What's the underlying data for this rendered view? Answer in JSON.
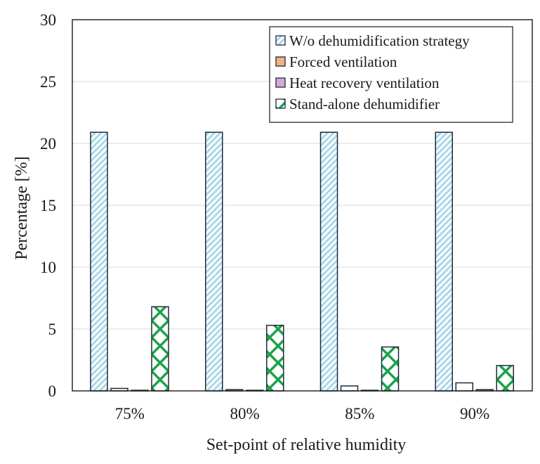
{
  "chart_data": {
    "type": "bar",
    "xlabel": "Set-point of relative humidity",
    "ylabel": "Percentage [%]",
    "ylim": [
      0,
      30
    ],
    "yticks": [
      0,
      5,
      10,
      15,
      20,
      25,
      30
    ],
    "grid": true,
    "legend_position": "top-right",
    "categories": [
      "75%",
      "80%",
      "85%",
      "90%"
    ],
    "series": [
      {
        "name": "W/o dehumidification strategy",
        "values": [
          20.9,
          20.9,
          20.9,
          20.9
        ],
        "color": "#a8d8ea",
        "pattern": "diagonal-stripes"
      },
      {
        "name": "Forced ventilation",
        "values": [
          0.2,
          0.1,
          0.4,
          0.65
        ],
        "color": "#f4b183",
        "pattern": "solid-white"
      },
      {
        "name": "Heat recovery ventilation",
        "values": [
          0.05,
          0.05,
          0.05,
          0.1
        ],
        "color": "#d9a6d9",
        "pattern": "solid-white"
      },
      {
        "name": "Stand-alone dehumidifier",
        "values": [
          6.8,
          5.3,
          3.55,
          2.05
        ],
        "color": "#1aa34a",
        "pattern": "diamond-lattice"
      }
    ]
  }
}
